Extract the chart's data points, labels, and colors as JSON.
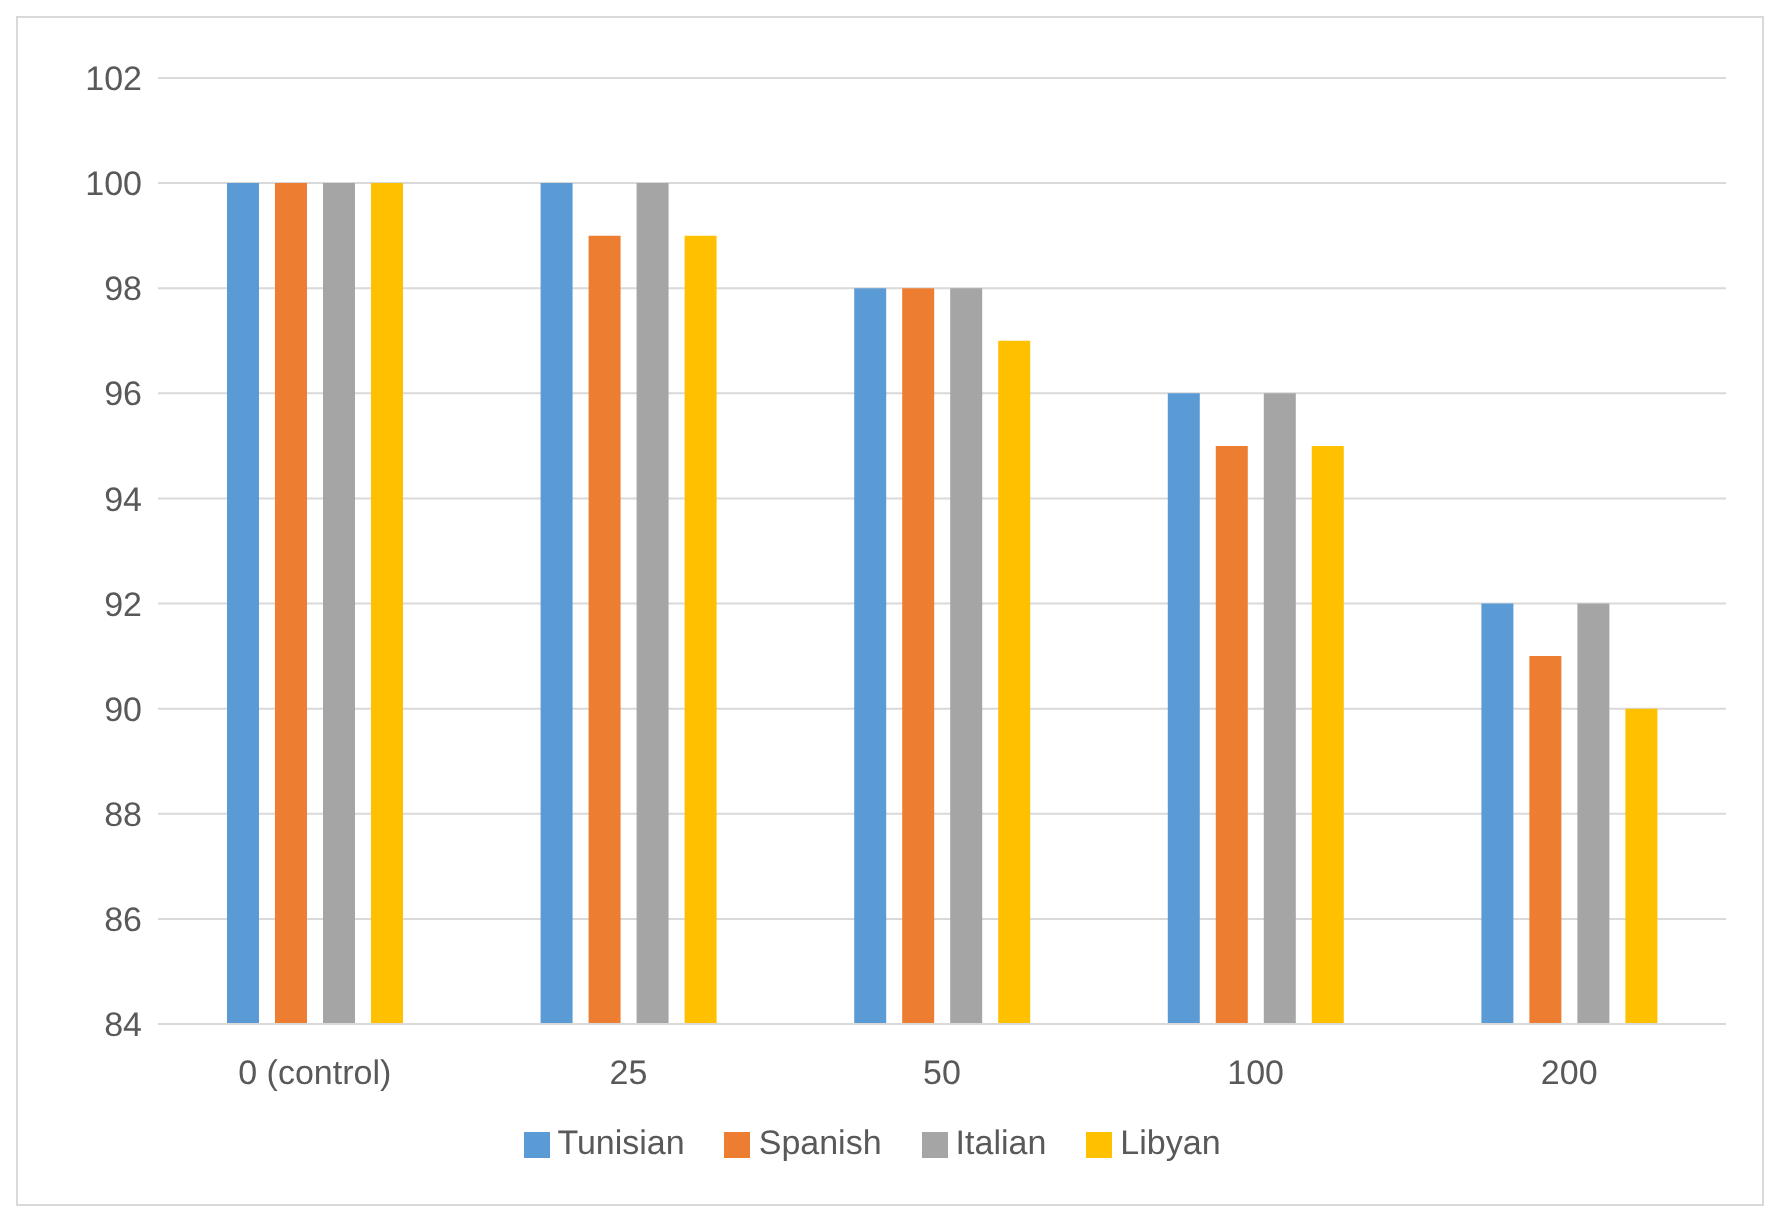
{
  "chart_data": {
    "type": "bar",
    "categories": [
      "0 (control)",
      "25",
      "50",
      "100",
      "200"
    ],
    "series": [
      {
        "name": "Tunisian",
        "color": "#5b9bd5",
        "values": [
          100,
          100,
          98,
          96,
          92
        ]
      },
      {
        "name": "Spanish",
        "color": "#ed7d31",
        "values": [
          100,
          99,
          98,
          95,
          91
        ]
      },
      {
        "name": "Italian",
        "color": "#a5a5a5",
        "values": [
          100,
          100,
          98,
          96,
          92
        ]
      },
      {
        "name": "Libyan",
        "color": "#ffc000",
        "values": [
          100,
          99,
          97,
          95,
          90
        ]
      }
    ],
    "ylim": [
      84,
      102
    ],
    "yticks": [
      84,
      86,
      88,
      90,
      92,
      94,
      96,
      98,
      100,
      102
    ],
    "grid": "y",
    "legend": "bottom"
  }
}
